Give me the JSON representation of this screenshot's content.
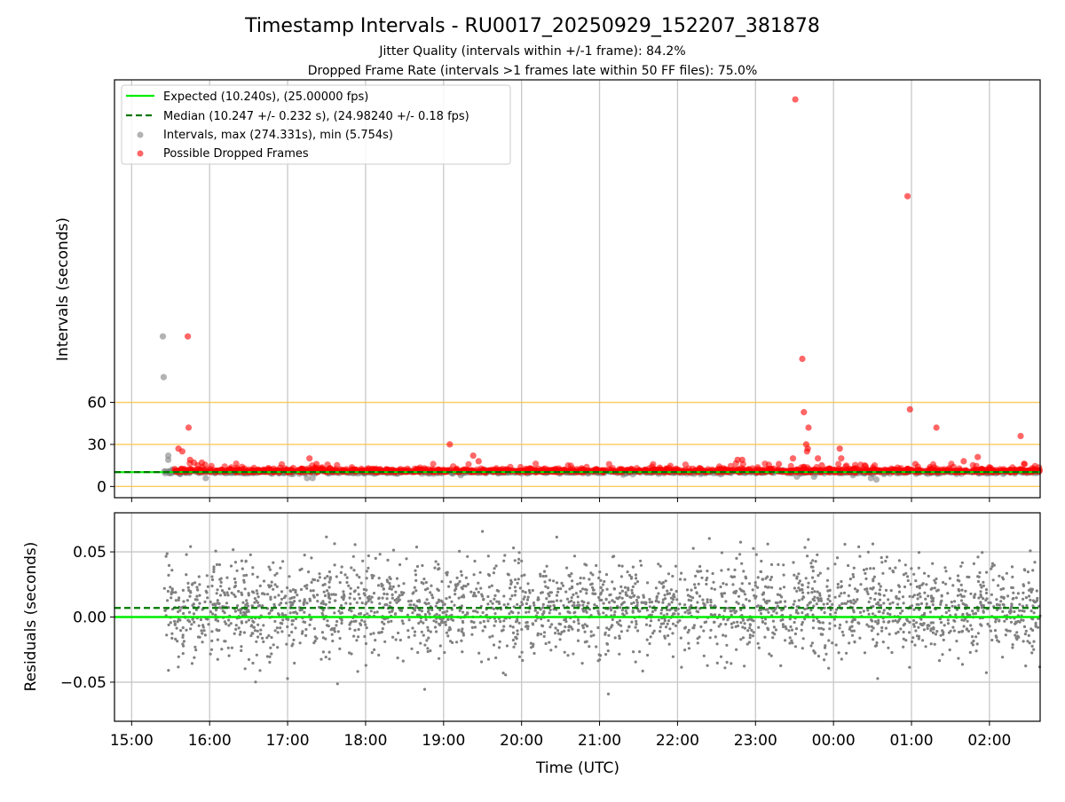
{
  "title": "Timestamp Intervals - RU0017_20250929_152207_381878",
  "subtitle_1": "Jitter Quality (intervals within +/-1 frame): 84.2%",
  "subtitle_2": "Dropped Frame Rate (intervals >1 frames late within 50 FF files): 75.0%",
  "colors": {
    "expected": "#00ee00",
    "median": "#007700",
    "intervals": "#808080",
    "dropped": "#ff0000",
    "threshold": "#ffc040",
    "grid": "#c8c8c8"
  },
  "chart_data": [
    {
      "type": "scatter",
      "ylabel": "Intervals (seconds)",
      "xlabel": "",
      "y_ticks": [
        0,
        30,
        60
      ],
      "y_tick_labels": [
        "0",
        "30",
        "60"
      ],
      "ylim": [
        -8,
        290
      ],
      "xlim_hours": [
        14.78,
        26.65
      ],
      "x_tick_hours": [
        15,
        16,
        17,
        18,
        19,
        20,
        21,
        22,
        23,
        24,
        25,
        26
      ],
      "threshold_lines": [
        0,
        30,
        60
      ],
      "legend_position": "upper-left",
      "legend": [
        {
          "kind": "line-solid",
          "label": "Expected (10.240s), (25.00000 fps)"
        },
        {
          "kind": "line-dashed",
          "label": "Median (10.247 +/- 0.232 s), (24.98240 +/- 0.18 fps)"
        },
        {
          "kind": "marker-gray",
          "label": "Intervals, max (274.331s), min (5.754s)"
        },
        {
          "kind": "marker-red",
          "label": "Possible Dropped Frames"
        }
      ],
      "expected": 10.24,
      "median": 10.247,
      "intervals_max": 274.331,
      "intervals_min": 5.754,
      "outliers_gray": [
        {
          "t": 15.4,
          "y": 107
        },
        {
          "t": 15.41,
          "y": 78
        },
        {
          "t": 15.47,
          "y": 22
        },
        {
          "t": 15.47,
          "y": 19
        },
        {
          "t": 15.52,
          "y": 12
        },
        {
          "t": 15.95,
          "y": 6
        },
        {
          "t": 17.25,
          "y": 6
        },
        {
          "t": 17.32,
          "y": 6
        },
        {
          "t": 19.22,
          "y": 8
        },
        {
          "t": 23.53,
          "y": 7
        },
        {
          "t": 23.75,
          "y": 7
        },
        {
          "t": 24.25,
          "y": 8
        },
        {
          "t": 24.48,
          "y": 6
        },
        {
          "t": 24.55,
          "y": 5
        }
      ],
      "outliers_red": [
        {
          "t": 15.72,
          "y": 107
        },
        {
          "t": 15.73,
          "y": 42
        },
        {
          "t": 15.6,
          "y": 27
        },
        {
          "t": 15.65,
          "y": 25
        },
        {
          "t": 15.75,
          "y": 19
        },
        {
          "t": 15.8,
          "y": 17
        },
        {
          "t": 15.85,
          "y": 15
        },
        {
          "t": 15.9,
          "y": 17
        },
        {
          "t": 17.28,
          "y": 20
        },
        {
          "t": 17.37,
          "y": 16
        },
        {
          "t": 19.08,
          "y": 30
        },
        {
          "t": 19.38,
          "y": 22
        },
        {
          "t": 19.45,
          "y": 18
        },
        {
          "t": 22.77,
          "y": 19
        },
        {
          "t": 22.83,
          "y": 19
        },
        {
          "t": 23.3,
          "y": 16
        },
        {
          "t": 23.48,
          "y": 20
        },
        {
          "t": 23.51,
          "y": 276
        },
        {
          "t": 23.6,
          "y": 91
        },
        {
          "t": 23.62,
          "y": 53
        },
        {
          "t": 23.65,
          "y": 30
        },
        {
          "t": 23.67,
          "y": 27
        },
        {
          "t": 23.66,
          "y": 25
        },
        {
          "t": 23.68,
          "y": 42
        },
        {
          "t": 23.8,
          "y": 20
        },
        {
          "t": 23.85,
          "y": 15
        },
        {
          "t": 24.08,
          "y": 27
        },
        {
          "t": 24.1,
          "y": 20
        },
        {
          "t": 24.4,
          "y": 15
        },
        {
          "t": 24.95,
          "y": 207
        },
        {
          "t": 24.98,
          "y": 55
        },
        {
          "t": 25.05,
          "y": 16
        },
        {
          "t": 25.32,
          "y": 42
        },
        {
          "t": 25.67,
          "y": 18
        },
        {
          "t": 25.85,
          "y": 21
        },
        {
          "t": 26.4,
          "y": 36
        },
        {
          "t": 26.45,
          "y": 16
        },
        {
          "t": 26.55,
          "y": 13
        }
      ]
    },
    {
      "type": "scatter",
      "ylabel": "Residuals (seconds)",
      "xlabel": "Time (UTC)",
      "y_ticks": [
        -0.05,
        0.0,
        0.05
      ],
      "y_tick_labels": [
        "−0.05",
        "0.00",
        "0.05"
      ],
      "ylim": [
        -0.08,
        0.08
      ],
      "xlim_hours": [
        14.78,
        26.65
      ],
      "x_tick_hours": [
        15,
        16,
        17,
        18,
        19,
        20,
        21,
        22,
        23,
        24,
        25,
        26
      ],
      "x_tick_labels": [
        "15:00",
        "16:00",
        "17:00",
        "18:00",
        "19:00",
        "20:00",
        "21:00",
        "22:00",
        "23:00",
        "00:00",
        "01:00",
        "02:00"
      ],
      "expected_residual": 0.0,
      "median_residual": 0.007,
      "data_range_hours": [
        15.42,
        26.65
      ],
      "residual_std": 0.018
    }
  ]
}
